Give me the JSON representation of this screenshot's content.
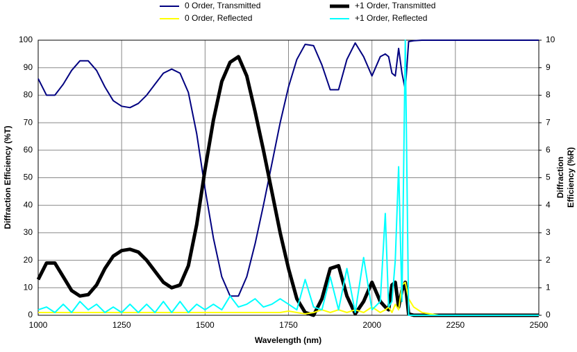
{
  "chart_data": {
    "type": "line",
    "x_label": "Wavelength (nm)",
    "y_label": "Diffraction Efficiency (%T)",
    "y2_label": [
      "Diffraction",
      "Efficiency (%R)"
    ],
    "x": [
      1000,
      1025,
      1050,
      1075,
      1100,
      1125,
      1150,
      1175,
      1200,
      1225,
      1250,
      1275,
      1300,
      1325,
      1350,
      1375,
      1400,
      1425,
      1450,
      1475,
      1500,
      1525,
      1550,
      1575,
      1600,
      1625,
      1650,
      1675,
      1700,
      1725,
      1750,
      1775,
      1800,
      1825,
      1850,
      1875,
      1900,
      1925,
      1950,
      1975,
      2000,
      2025,
      2040,
      2050,
      2060,
      2070,
      2080,
      2090,
      2100,
      2110,
      2125,
      2150,
      2200,
      2300,
      2400,
      2500
    ],
    "series": [
      {
        "name": "0 Order, Transmitted",
        "color": "#000080",
        "width": 2,
        "values": [
          86,
          80,
          80,
          84,
          89,
          92.5,
          92.5,
          89,
          83,
          78,
          76,
          75.5,
          77,
          80,
          84,
          88,
          89.5,
          88,
          81,
          66,
          46,
          28,
          14,
          7,
          7,
          14,
          26,
          40,
          55,
          70,
          83,
          93,
          98.5,
          98,
          91,
          82,
          82,
          93,
          99,
          94,
          87,
          94,
          95,
          94,
          88,
          87,
          97,
          88,
          82,
          99.5,
          99.8,
          100,
          100,
          100,
          100,
          100
        ]
      },
      {
        "name": "+1 Order, Transmitted",
        "color": "#000000",
        "width": 5,
        "values": [
          13,
          19,
          19,
          14,
          9,
          7,
          7.5,
          11,
          17,
          21.5,
          23.5,
          24,
          23,
          20,
          16,
          12,
          10,
          11,
          18,
          33,
          53,
          71,
          85,
          92,
          94,
          87,
          74,
          60,
          45,
          30,
          17,
          6,
          1,
          0,
          6,
          17,
          18,
          7,
          0.5,
          5,
          12,
          5,
          3,
          2,
          11,
          12,
          3,
          9,
          12,
          0.5,
          0,
          0,
          0,
          0,
          0,
          0
        ]
      },
      {
        "name": "0 Order, Reflected",
        "color": "#ffff00",
        "width": 2,
        "axis": "y2",
        "values": [
          0.1,
          0.1,
          0.1,
          0.1,
          0.1,
          0.1,
          0.1,
          0.1,
          0.1,
          0.1,
          0.1,
          0.1,
          0.1,
          0.1,
          0.1,
          0.1,
          0.1,
          0.1,
          0.1,
          0.1,
          0.1,
          0.1,
          0.1,
          0.1,
          0.1,
          0.1,
          0.1,
          0.1,
          0.1,
          0.1,
          0.15,
          0.1,
          0.05,
          0.1,
          0.2,
          0.1,
          0.2,
          0.1,
          0.2,
          0.1,
          0.3,
          0.1,
          0.2,
          0.3,
          0.1,
          0.4,
          0.2,
          1.1,
          1.2,
          0.6,
          0.3,
          0.1,
          0,
          0,
          0,
          0
        ]
      },
      {
        "name": "+1 Order, Reflected",
        "color": "#00ffff",
        "width": 2,
        "axis": "y2",
        "values": [
          0.2,
          0.3,
          0.1,
          0.4,
          0.1,
          0.5,
          0.2,
          0.4,
          0.1,
          0.3,
          0.1,
          0.4,
          0.1,
          0.4,
          0.1,
          0.5,
          0.1,
          0.5,
          0.1,
          0.4,
          0.2,
          0.4,
          0.2,
          0.7,
          0.3,
          0.4,
          0.6,
          0.3,
          0.4,
          0.6,
          0.4,
          0.2,
          1.3,
          0.3,
          0.2,
          1.4,
          0.2,
          1.7,
          0.1,
          2.1,
          0.2,
          0.5,
          3.7,
          0.3,
          0.5,
          2,
          5.4,
          0.5,
          10,
          0,
          0,
          0,
          0,
          0,
          0,
          0
        ]
      }
    ],
    "xlim": [
      1000,
      2500
    ],
    "xticks": [
      1000,
      1250,
      1500,
      1750,
      2000,
      2250,
      2500
    ],
    "ylim": [
      0,
      100
    ],
    "yticks": [
      0,
      10,
      20,
      30,
      40,
      50,
      60,
      70,
      80,
      90,
      100
    ],
    "y2lim": [
      0,
      10
    ],
    "y2ticks": [
      0,
      1,
      2,
      3,
      4,
      5,
      6,
      7,
      8,
      9,
      10
    ],
    "grid": true
  }
}
